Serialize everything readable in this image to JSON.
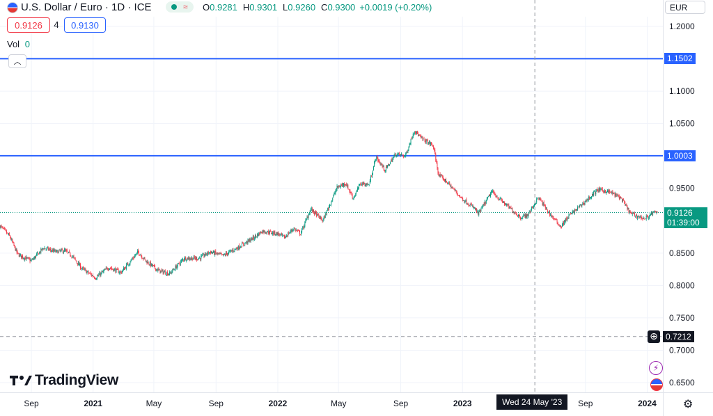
{
  "header": {
    "title": "U.S. Dollar / Euro · 1D · ICE",
    "ohlc": {
      "o_label": "O",
      "o_value": "0.9281",
      "h_label": "H",
      "h_value": "0.9301",
      "l_label": "L",
      "l_value": "0.9260",
      "c_label": "C",
      "c_value": "0.9300",
      "change": "+0.0019 (+0.20%)"
    },
    "bid": "0.9126",
    "spread": "4",
    "ask": "0.9130",
    "vol_label": "Vol",
    "vol_value": "0",
    "currency_button": "EUR"
  },
  "branding": {
    "logo_text": "TradingView"
  },
  "crosshair": {
    "date_label": "Wed 24 May '23",
    "price_label": "0.7212"
  },
  "colors": {
    "up": "#089981",
    "down": "#f23645",
    "hline": "#2962ff",
    "last": "#089981"
  },
  "chart_data": {
    "type": "candlestick",
    "x_range": [
      "2020-07",
      "2024-02"
    ],
    "y_range": [
      0.635,
      1.215
    ],
    "y_ticks": [
      "1.2000",
      "1.1000",
      "1.0500",
      "0.9500",
      "0.8500",
      "0.8000",
      "0.7500",
      "0.7000",
      "0.6500"
    ],
    "x_ticks": [
      "Sep",
      "2021",
      "May",
      "Sep",
      "2022",
      "May",
      "Sep",
      "2023",
      "Sep",
      "2024"
    ],
    "x_tick_dates": [
      "2020-09-01",
      "2021-01-01",
      "2021-05-01",
      "2021-09-01",
      "2022-01-01",
      "2022-05-01",
      "2022-09-01",
      "2023-01-01",
      "2023-09-01",
      "2024-01-01"
    ],
    "horizontal_lines": [
      {
        "value": 1.1502,
        "label": "1.1502"
      },
      {
        "value": 1.0003,
        "label": "1.0003"
      }
    ],
    "last_price": {
      "value": 0.9126,
      "label": "0.9126",
      "countdown": "01:39:00"
    },
    "close_path": [
      [
        "2020-07-01",
        0.892
      ],
      [
        "2020-07-20",
        0.876
      ],
      [
        "2020-08-05",
        0.848
      ],
      [
        "2020-09-01",
        0.838
      ],
      [
        "2020-09-25",
        0.858
      ],
      [
        "2020-10-20",
        0.852
      ],
      [
        "2020-11-05",
        0.854
      ],
      [
        "2020-11-20",
        0.846
      ],
      [
        "2020-12-10",
        0.826
      ],
      [
        "2021-01-06",
        0.812
      ],
      [
        "2021-02-01",
        0.828
      ],
      [
        "2021-02-25",
        0.82
      ],
      [
        "2021-03-31",
        0.852
      ],
      [
        "2021-04-15",
        0.838
      ],
      [
        "2021-05-10",
        0.823
      ],
      [
        "2021-06-01",
        0.818
      ],
      [
        "2021-06-30",
        0.842
      ],
      [
        "2021-07-30",
        0.842
      ],
      [
        "2021-08-20",
        0.852
      ],
      [
        "2021-09-15",
        0.846
      ],
      [
        "2021-10-15",
        0.859
      ],
      [
        "2021-11-15",
        0.874
      ],
      [
        "2021-12-01",
        0.884
      ],
      [
        "2022-01-01",
        0.88
      ],
      [
        "2022-01-14",
        0.874
      ],
      [
        "2022-02-01",
        0.888
      ],
      [
        "2022-02-15",
        0.88
      ],
      [
        "2022-03-07",
        0.918
      ],
      [
        "2022-03-31",
        0.9
      ],
      [
        "2022-04-28",
        0.951
      ],
      [
        "2022-05-15",
        0.958
      ],
      [
        "2022-05-30",
        0.935
      ],
      [
        "2022-06-14",
        0.958
      ],
      [
        "2022-06-30",
        0.955
      ],
      [
        "2022-07-14",
        0.998
      ],
      [
        "2022-08-01",
        0.978
      ],
      [
        "2022-08-22",
        1.003
      ],
      [
        "2022-09-10",
        1.0
      ],
      [
        "2022-09-28",
        1.04
      ],
      [
        "2022-10-10",
        1.028
      ],
      [
        "2022-11-04",
        1.016
      ],
      [
        "2022-11-15",
        0.97
      ],
      [
        "2022-12-01",
        0.96
      ],
      [
        "2022-12-30",
        0.935
      ],
      [
        "2023-01-26",
        0.918
      ],
      [
        "2023-02-01",
        0.91
      ],
      [
        "2023-02-28",
        0.945
      ],
      [
        "2023-03-20",
        0.93
      ],
      [
        "2023-04-26",
        0.905
      ],
      [
        "2023-05-10",
        0.909
      ],
      [
        "2023-05-31",
        0.936
      ],
      [
        "2023-06-20",
        0.913
      ],
      [
        "2023-07-14",
        0.891
      ],
      [
        "2023-07-31",
        0.908
      ],
      [
        "2023-08-25",
        0.925
      ],
      [
        "2023-09-26",
        0.948
      ],
      [
        "2023-10-20",
        0.944
      ],
      [
        "2023-11-10",
        0.935
      ],
      [
        "2023-11-29",
        0.911
      ],
      [
        "2023-12-27",
        0.903
      ],
      [
        "2024-01-12",
        0.912
      ],
      [
        "2024-01-22",
        0.9126
      ]
    ]
  }
}
